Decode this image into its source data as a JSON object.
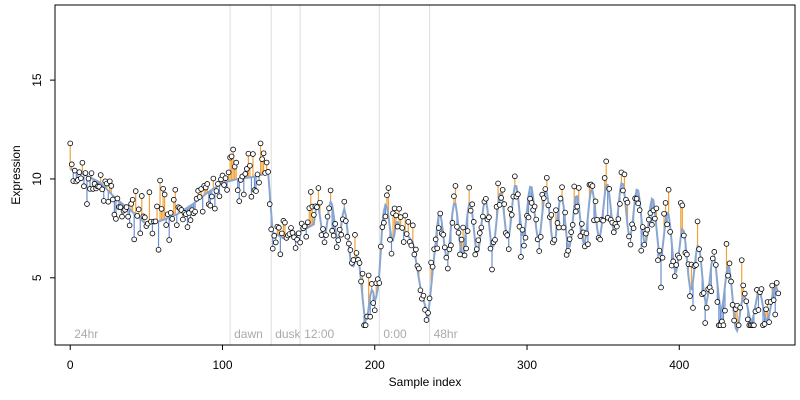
{
  "chart_data": {
    "type": "line",
    "xlabel": "Sample index",
    "ylabel": "Expression",
    "xlim": [
      -10,
      476
    ],
    "ylim": [
      1.6,
      18.8
    ],
    "x_ticks": [
      0,
      100,
      200,
      300,
      400
    ],
    "y_ticks": [
      5,
      10,
      15
    ],
    "grid": false,
    "legend": "none",
    "colors": {
      "fit_line": "#8aa6cf",
      "above_residual": "#f2a23a",
      "below_residual": "#6b8fd4",
      "points": "#000000",
      "region_lines": "#dddddd",
      "region_labels": "#aaaaaa"
    },
    "regions": [
      {
        "x": 0,
        "label": "24hr"
      },
      {
        "x": 105,
        "label": "dawn"
      },
      {
        "x": 132,
        "label": "dusk"
      },
      {
        "x": 151,
        "label": "12:00"
      },
      {
        "x": 203,
        "label": "0:00"
      },
      {
        "x": 236,
        "label": "48hr"
      }
    ],
    "curve_knots": [
      [
        0,
        10.5
      ],
      [
        10,
        10.2
      ],
      [
        20,
        9.8
      ],
      [
        30,
        9.0
      ],
      [
        40,
        8.4
      ],
      [
        50,
        7.7
      ],
      [
        60,
        7.9
      ],
      [
        70,
        8.2
      ],
      [
        80,
        8.7
      ],
      [
        90,
        9.3
      ],
      [
        100,
        9.8
      ],
      [
        110,
        10.0
      ],
      [
        120,
        10.1
      ],
      [
        130,
        10.3
      ],
      [
        133,
        7.3
      ],
      [
        140,
        7.0
      ],
      [
        150,
        7.3
      ],
      [
        160,
        7.7
      ],
      [
        170,
        8.0
      ],
      [
        180,
        7.6
      ],
      [
        185,
        6.5
      ],
      [
        190,
        4.8
      ],
      [
        195,
        3.5
      ],
      [
        200,
        3.5
      ],
      [
        205,
        7.8
      ],
      [
        215,
        7.8
      ],
      [
        225,
        6.8
      ],
      [
        230,
        4.5
      ],
      [
        235,
        3.0
      ],
      [
        240,
        6.8
      ],
      [
        250,
        7.5
      ],
      [
        260,
        7.5
      ],
      [
        270,
        7.6
      ],
      [
        280,
        7.9
      ],
      [
        290,
        8.4
      ],
      [
        300,
        8.4
      ],
      [
        310,
        8.2
      ],
      [
        320,
        7.9
      ],
      [
        330,
        7.8
      ],
      [
        340,
        8.1
      ],
      [
        350,
        8.4
      ],
      [
        360,
        8.6
      ],
      [
        370,
        8.3
      ],
      [
        380,
        7.9
      ],
      [
        390,
        7.2
      ],
      [
        400,
        6.4
      ],
      [
        410,
        5.5
      ],
      [
        420,
        4.9
      ],
      [
        430,
        4.6
      ],
      [
        440,
        3.3
      ],
      [
        450,
        3.6
      ],
      [
        460,
        3.5
      ],
      [
        465,
        4.2
      ]
    ],
    "oscillations": [
      {
        "from": 160,
        "to": 215,
        "amplitude": 0.9,
        "period": 9
      },
      {
        "from": 240,
        "to": 440,
        "amplitude": 1.3,
        "period": 10
      },
      {
        "from": 440,
        "to": 466,
        "amplitude": 0.7,
        "period": 10
      }
    ],
    "residual_sd": 0.7,
    "n_samples": 466
  }
}
